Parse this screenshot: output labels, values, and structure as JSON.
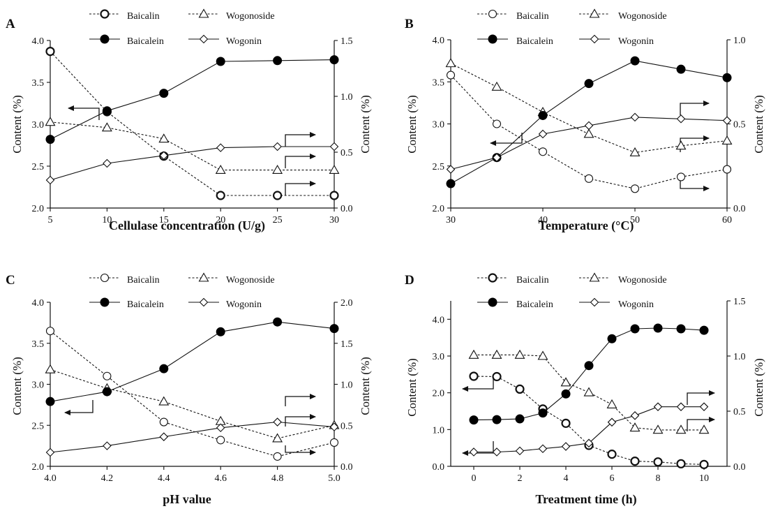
{
  "chart_data": [
    {
      "type": "line",
      "panel_label": "A",
      "xlabel": "Cellulase concentration (U/g)",
      "ylabel_left": "Content (%)",
      "ylabel_right": "Content (%)",
      "x_ticks": [
        5,
        10,
        15,
        20,
        25,
        30
      ],
      "xlim": [
        5,
        30
      ],
      "ylim_left": [
        2.0,
        4.0
      ],
      "y_ticks_left": [
        "2.0",
        "2.5",
        "3.0",
        "3.5",
        "4.0"
      ],
      "ylim_right": [
        0.0,
        1.5
      ],
      "y_ticks_right": [
        "0.0",
        "0.5",
        "1.0",
        "1.5"
      ],
      "legend": [
        "Baicalin",
        "Wogonoside",
        "Baicalein",
        "Wogonin"
      ],
      "series": [
        {
          "name": "Baicalin",
          "axis": "left",
          "marker": "circle-open-bold",
          "dashed": true,
          "x": [
            5,
            10,
            15,
            20,
            25,
            30
          ],
          "values": [
            3.87,
            3.15,
            2.62,
            2.15,
            2.15,
            2.15
          ]
        },
        {
          "name": "Wogonoside",
          "axis": "right",
          "marker": "triangle-open",
          "dashed": true,
          "x": [
            5,
            10,
            15,
            20,
            25,
            30
          ],
          "values": [
            0.77,
            0.72,
            0.62,
            0.34,
            0.34,
            0.34
          ]
        },
        {
          "name": "Baicalein",
          "axis": "left",
          "marker": "circle-filled",
          "dashed": false,
          "x": [
            5,
            10,
            15,
            20,
            25,
            30
          ],
          "values": [
            2.82,
            3.16,
            3.37,
            3.75,
            3.76,
            3.77
          ]
        },
        {
          "name": "Wogonin",
          "axis": "right",
          "marker": "diamond-open",
          "dashed": false,
          "x": [
            5,
            10,
            15,
            20,
            25,
            30
          ],
          "values": [
            0.25,
            0.4,
            0.47,
            0.54,
            0.55,
            0.55
          ]
        }
      ]
    },
    {
      "type": "line",
      "panel_label": "B",
      "xlabel": "Temperature (°C)",
      "ylabel_left": "Content (%)",
      "ylabel_right": "Content (%)",
      "x_ticks": [
        30,
        40,
        50,
        60
      ],
      "xlim": [
        30,
        60
      ],
      "ylim_left": [
        2.0,
        4.0
      ],
      "y_ticks_left": [
        "2.0",
        "2.5",
        "3.0",
        "3.5",
        "4.0"
      ],
      "ylim_right": [
        0.0,
        1.0
      ],
      "y_ticks_right": [
        "0.0",
        "0.5",
        "1.0"
      ],
      "legend": [
        "Baicalin",
        "Wogonoside",
        "Baicalein",
        "Wogonin"
      ],
      "series": [
        {
          "name": "Baicalin",
          "axis": "left",
          "marker": "circle-open",
          "dashed": true,
          "x": [
            30,
            35,
            40,
            45,
            50,
            55,
            60
          ],
          "values": [
            3.58,
            3.0,
            2.67,
            2.35,
            2.23,
            2.37,
            2.46
          ]
        },
        {
          "name": "Wogonoside",
          "axis": "right",
          "marker": "triangle-open",
          "dashed": true,
          "x": [
            30,
            35,
            40,
            45,
            50,
            55,
            60
          ],
          "values": [
            0.86,
            0.72,
            0.57,
            0.44,
            0.33,
            0.37,
            0.4
          ]
        },
        {
          "name": "Baicalein",
          "axis": "left",
          "marker": "circle-filled",
          "dashed": false,
          "x": [
            30,
            35,
            40,
            45,
            50,
            55,
            60
          ],
          "values": [
            2.29,
            2.6,
            3.1,
            3.48,
            3.75,
            3.65,
            3.55
          ]
        },
        {
          "name": "Wogonin",
          "axis": "right",
          "marker": "diamond-open",
          "dashed": false,
          "x": [
            30,
            35,
            40,
            45,
            50,
            55,
            60
          ],
          "values": [
            0.23,
            0.3,
            0.44,
            0.49,
            0.54,
            0.53,
            0.52
          ]
        }
      ]
    },
    {
      "type": "line",
      "panel_label": "C",
      "xlabel": "pH value",
      "ylabel_left": "Content (%)",
      "ylabel_right": "Content (%)",
      "x_ticks": [
        "4.0",
        "4.2",
        "4.4",
        "4.6",
        "4.8",
        "5.0"
      ],
      "xlim": [
        4.0,
        5.0
      ],
      "ylim_left": [
        2.0,
        4.0
      ],
      "y_ticks_left": [
        "2.0",
        "2.5",
        "3.0",
        "3.5",
        "4.0"
      ],
      "ylim_right": [
        0.0,
        2.0
      ],
      "y_ticks_right": [
        "0.0",
        "0.5",
        "1.0",
        "1.5",
        "2.0"
      ],
      "legend": [
        "Baicalin",
        "Wogonoside",
        "Baicalein",
        "Wogonin"
      ],
      "series": [
        {
          "name": "Baicalin",
          "axis": "left",
          "marker": "circle-open",
          "dashed": true,
          "x": [
            4.0,
            4.2,
            4.4,
            4.6,
            4.8,
            5.0
          ],
          "values": [
            3.65,
            3.1,
            2.54,
            2.32,
            2.12,
            2.29
          ]
        },
        {
          "name": "Wogonoside",
          "axis": "right",
          "marker": "triangle-open",
          "dashed": true,
          "x": [
            4.0,
            4.2,
            4.4,
            4.6,
            4.8,
            5.0
          ],
          "values": [
            1.18,
            0.95,
            0.79,
            0.55,
            0.34,
            0.5
          ]
        },
        {
          "name": "Baicalein",
          "axis": "left",
          "marker": "circle-filled",
          "dashed": false,
          "x": [
            4.0,
            4.2,
            4.4,
            4.6,
            4.8,
            5.0
          ],
          "values": [
            2.79,
            2.91,
            3.19,
            3.64,
            3.76,
            3.68
          ]
        },
        {
          "name": "Wogonin",
          "axis": "right",
          "marker": "diamond-open",
          "dashed": false,
          "x": [
            4.0,
            4.2,
            4.4,
            4.6,
            4.8,
            5.0
          ],
          "values": [
            0.17,
            0.25,
            0.36,
            0.47,
            0.54,
            0.48
          ]
        }
      ]
    },
    {
      "type": "line",
      "panel_label": "D",
      "xlabel": "Treatment time (h)",
      "ylabel_left": "Content (%)",
      "ylabel_right": "Content (%)",
      "x_ticks": [
        0,
        2,
        4,
        6,
        8,
        10
      ],
      "xlim": [
        -1,
        11
      ],
      "ylim_left": [
        0.0,
        4.5
      ],
      "y_ticks_left": [
        "0.0",
        "1.0",
        "2.0",
        "3.0",
        "4.0"
      ],
      "ylim_right": [
        0.0,
        1.5
      ],
      "y_ticks_right": [
        "0.0",
        "0.5",
        "1.0",
        "1.5"
      ],
      "legend": [
        "Baicalin",
        "Wogonoside",
        "Baicalein",
        "Wogonin"
      ],
      "series": [
        {
          "name": "Baicalin",
          "axis": "left",
          "marker": "circle-open-bold",
          "dashed": true,
          "x": [
            0,
            1,
            2,
            3,
            4,
            5,
            6,
            7,
            8,
            9,
            10
          ],
          "values": [
            2.45,
            2.44,
            2.1,
            1.56,
            1.17,
            0.57,
            0.33,
            0.14,
            0.12,
            0.07,
            0.05
          ]
        },
        {
          "name": "Wogonoside",
          "axis": "right",
          "marker": "triangle-open",
          "dashed": true,
          "x": [
            0,
            1,
            2,
            3,
            4,
            5,
            6,
            7,
            8,
            9,
            10
          ],
          "values": [
            1.01,
            1.01,
            1.01,
            1.0,
            0.76,
            0.67,
            0.56,
            0.35,
            0.33,
            0.33,
            0.33
          ]
        },
        {
          "name": "Baicalein",
          "axis": "left",
          "marker": "circle-filled",
          "dashed": false,
          "x": [
            0,
            1,
            2,
            3,
            4,
            5,
            6,
            7,
            8,
            9,
            10
          ],
          "values": [
            1.26,
            1.27,
            1.29,
            1.45,
            1.97,
            2.74,
            3.47,
            3.74,
            3.76,
            3.74,
            3.7
          ]
        },
        {
          "name": "Wogonin",
          "axis": "right",
          "marker": "diamond-open",
          "dashed": false,
          "x": [
            0,
            1,
            2,
            3,
            4,
            5,
            6,
            7,
            8,
            9,
            10
          ],
          "values": [
            0.13,
            0.13,
            0.14,
            0.16,
            0.18,
            0.21,
            0.4,
            0.46,
            0.54,
            0.54,
            0.54
          ]
        }
      ]
    }
  ]
}
